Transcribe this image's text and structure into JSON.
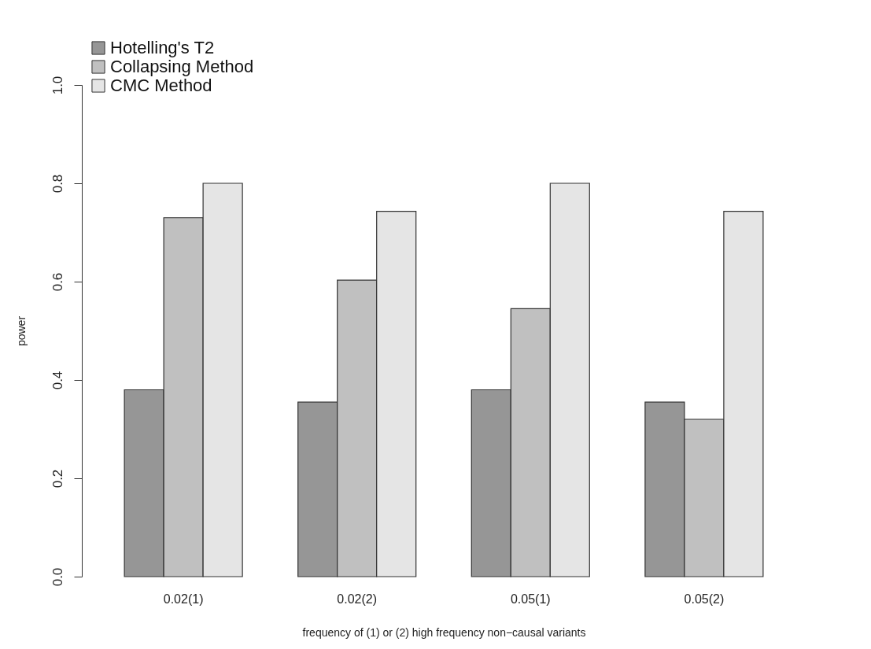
{
  "chart_data": {
    "type": "bar",
    "xlabel": "frequency of (1) or (2) high frequency non−causal variants",
    "ylabel": "power",
    "categories": [
      "0.02(1)",
      "0.02(2)",
      "0.05(1)",
      "0.05(2)"
    ],
    "series": [
      {
        "name": "Hotelling's T2",
        "color": "#969696",
        "values": [
          0.38,
          0.355,
          0.38,
          0.355
        ]
      },
      {
        "name": "Collapsing Method",
        "color": "#c0c0c0",
        "values": [
          0.73,
          0.603,
          0.545,
          0.32
        ]
      },
      {
        "name": "CMC Method",
        "color": "#e5e5e5",
        "values": [
          0.8,
          0.743,
          0.8,
          0.743
        ]
      }
    ],
    "ylim": [
      0,
      1
    ],
    "yticks": [
      {
        "value": 0,
        "label": "0.0"
      },
      0.2,
      0.4,
      0.6,
      0.8,
      {
        "value": 1,
        "label": "1.0"
      }
    ],
    "grid": false,
    "legend": "top left"
  }
}
